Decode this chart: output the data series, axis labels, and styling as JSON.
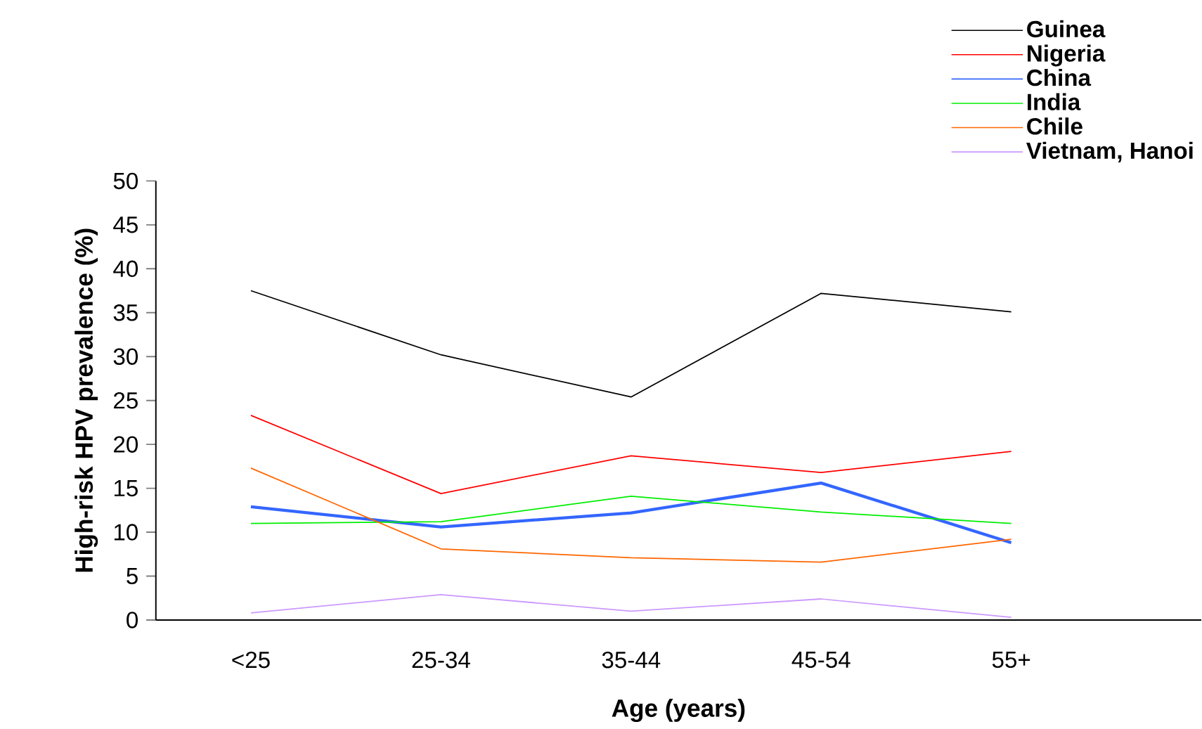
{
  "chart_data": {
    "type": "line",
    "xlabel": "Age (years)",
    "ylabel": "High-risk HPV prevalence (%)",
    "categories": [
      "<25",
      "25-34",
      "35-44",
      "45-54",
      "55+"
    ],
    "series": [
      {
        "name": "Guinea",
        "color": "#000000",
        "values": [
          37.5,
          30.2,
          25.4,
          37.2,
          35.1
        ]
      },
      {
        "name": "Nigeria",
        "color": "#ff0000",
        "values": [
          23.3,
          14.4,
          18.7,
          16.8,
          19.2
        ]
      },
      {
        "name": "China",
        "color": "#3366ff",
        "values": [
          12.9,
          10.6,
          12.2,
          15.6,
          8.8
        ]
      },
      {
        "name": "India",
        "color": "#00ee00",
        "values": [
          11.0,
          11.2,
          14.1,
          12.3,
          11.0
        ]
      },
      {
        "name": "Chile",
        "color": "#ff6600",
        "values": [
          17.3,
          8.1,
          7.1,
          6.6,
          9.2
        ]
      },
      {
        "name": "Vietnam, Hanoi",
        "color": "#cc99ff",
        "values": [
          0.8,
          2.9,
          1.0,
          2.4,
          0.3
        ]
      }
    ],
    "ylim": [
      0,
      50
    ],
    "yticks": [
      0,
      5,
      10,
      15,
      20,
      25,
      30,
      35,
      40,
      45,
      50
    ],
    "legend": "top right",
    "grid": false,
    "marker": "none",
    "line_style": "solid"
  }
}
